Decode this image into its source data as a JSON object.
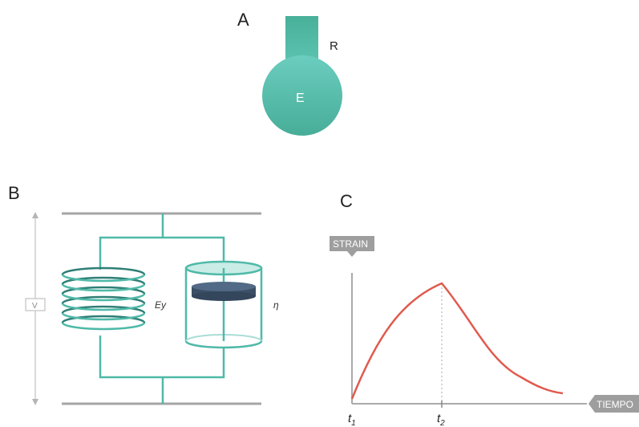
{
  "panel_a": {
    "letter": "A",
    "bulb_label": "E",
    "tube_label": "R",
    "color": "#52b7a4"
  },
  "panel_b": {
    "letter": "B",
    "side_label": "V",
    "spring_label": "Ey",
    "dashpot_label": "η",
    "line_color": "#4fb9a8",
    "plate_color": "#3b4f66"
  },
  "panel_c": {
    "letter": "C",
    "y_axis_tag": "STRAIN",
    "x_axis_tag": "TIEMPO",
    "t1_label": "t",
    "t1_sub": "1",
    "t2_label": "t",
    "t2_sub": "2",
    "curve_color": "#e05a4e",
    "tag_color": "#9e9e9e"
  }
}
